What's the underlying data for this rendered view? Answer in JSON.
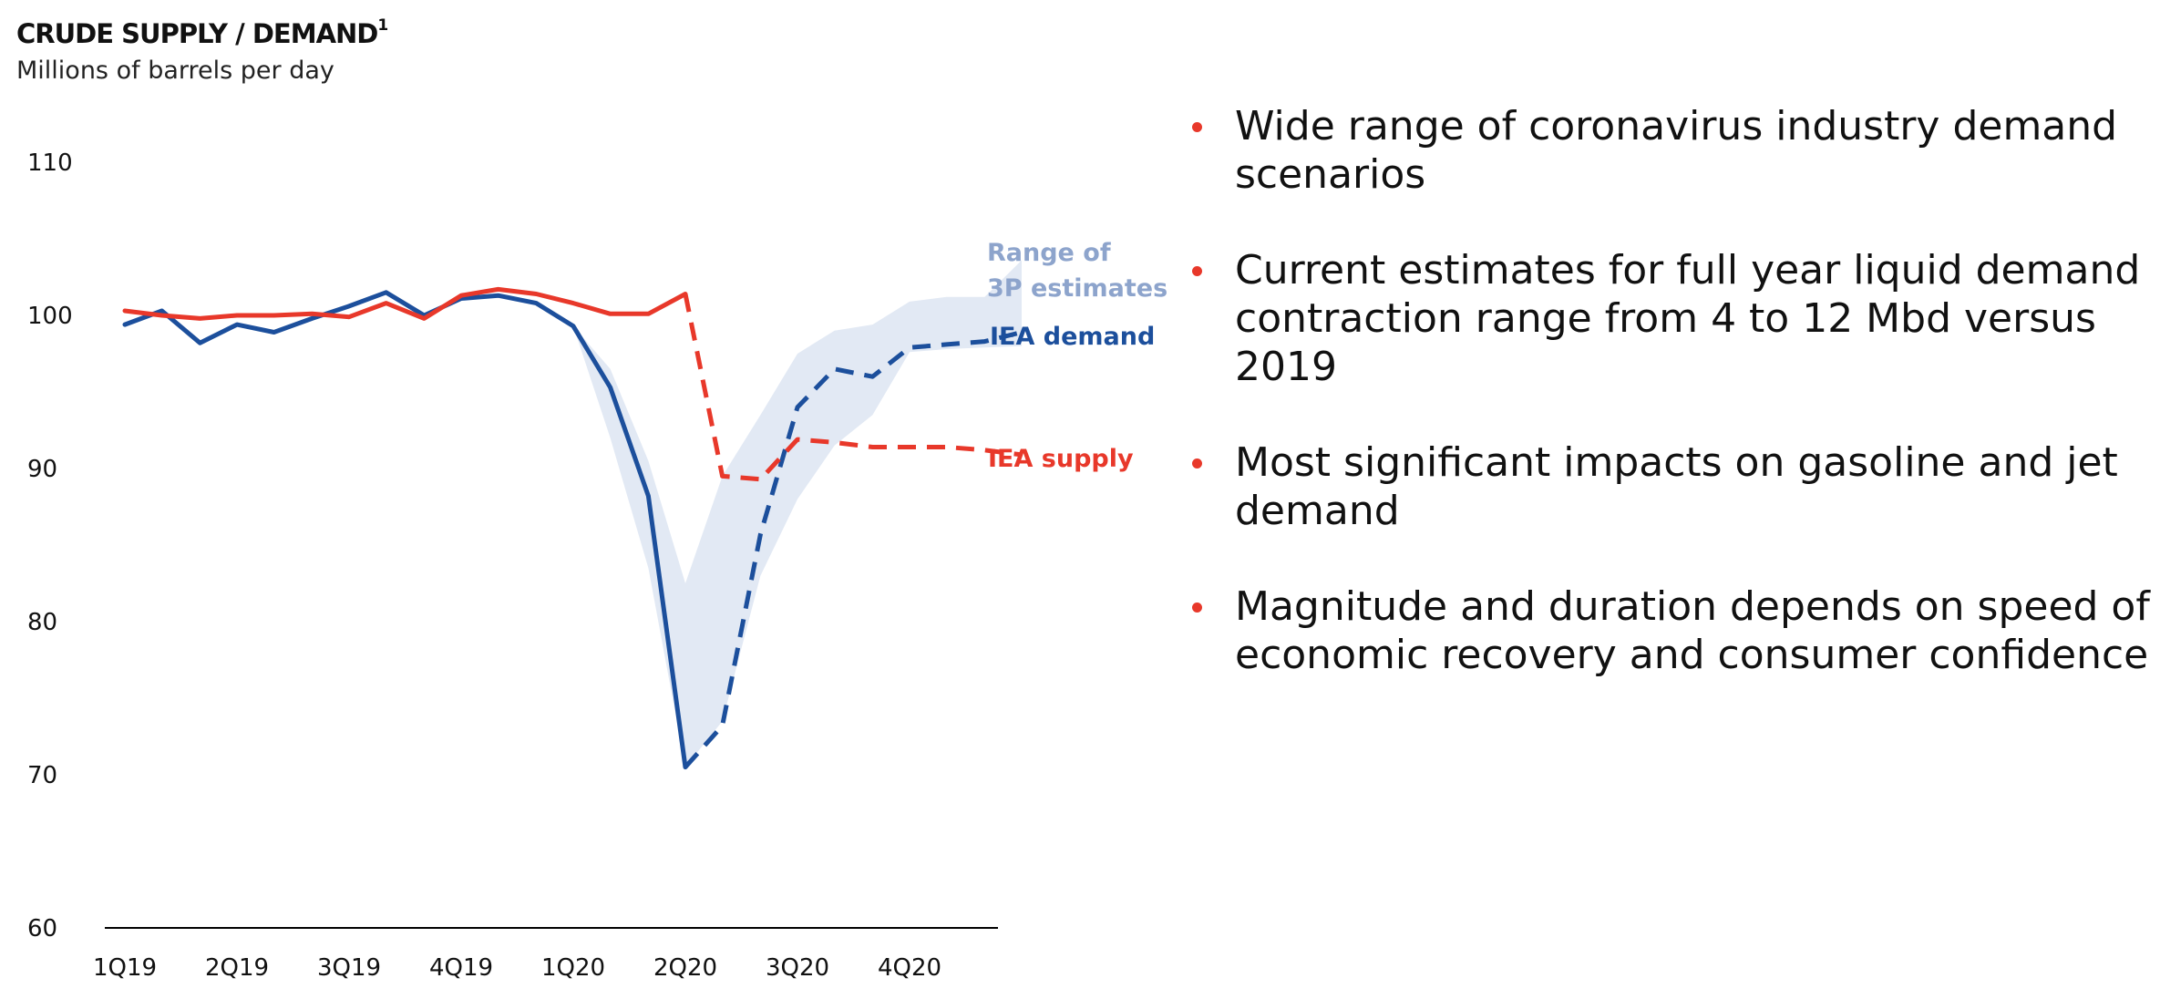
{
  "header": {
    "title": "CRUDE SUPPLY / DEMAND",
    "title_footnote": "1",
    "subtitle": "Millions of barrels per day"
  },
  "chart_data": {
    "type": "line",
    "title": "CRUDE SUPPLY / DEMAND",
    "subtitle": "Millions of barrels per day",
    "xlabel": "",
    "ylabel": "",
    "ylim": [
      60,
      110
    ],
    "yticks": [
      60,
      70,
      80,
      90,
      100,
      110
    ],
    "xticks": [
      "1Q19",
      "2Q19",
      "3Q19",
      "4Q19",
      "1Q20",
      "2Q20",
      "3Q20",
      "4Q20"
    ],
    "grid": false,
    "colors": {
      "demand": "#1c4f9c",
      "supply": "#e8382a",
      "range": "#e2e9f4",
      "range_label": "#8da4cc",
      "axis": "#000000"
    },
    "series": [
      {
        "name": "IEA demand",
        "x": [
          0,
          0.33,
          0.67,
          1,
          1.33,
          1.67,
          2,
          2.33,
          2.67,
          3,
          3.33,
          3.67,
          4,
          4.33,
          4.67,
          5,
          5.33,
          5.67,
          6,
          6.33,
          6.67,
          7,
          7.33,
          7.67,
          8
        ],
        "values": [
          99.4,
          100.3,
          98.2,
          99.4,
          98.9,
          99.8,
          100.6,
          101.5,
          100.0,
          101.1,
          101.3,
          100.8,
          99.3,
          95.3,
          88.2,
          70.5,
          73.2,
          85.7,
          94.0,
          96.5,
          96.0,
          97.9,
          98.1,
          98.3,
          98.9
        ],
        "dashed_from_index": 15
      },
      {
        "name": "IEA supply",
        "x": [
          0,
          0.33,
          0.67,
          1,
          1.33,
          1.67,
          2,
          2.33,
          2.67,
          3,
          3.33,
          3.67,
          4,
          4.33,
          4.67,
          5,
          5.33,
          5.67,
          6,
          6.33,
          6.67,
          7,
          7.33,
          7.67,
          8
        ],
        "values": [
          100.3,
          100.0,
          99.8,
          100.0,
          100.0,
          100.1,
          99.9,
          100.8,
          99.8,
          101.3,
          101.7,
          101.4,
          100.8,
          100.1,
          100.1,
          101.4,
          89.5,
          89.3,
          91.9,
          91.7,
          91.4,
          91.4,
          91.4,
          91.2,
          90.9
        ],
        "dashed_from_index": 15
      }
    ],
    "range_band": {
      "name": "Range of 3P estimates",
      "label_lines": [
        "Range of",
        "3P estimates"
      ],
      "x": [
        4,
        4.33,
        4.67,
        5,
        5.33,
        5.67,
        6,
        6.33,
        6.67,
        7,
        7.33,
        7.67,
        8
      ],
      "upper": [
        99.3,
        96.5,
        90.5,
        82.5,
        89.5,
        93.5,
        97.5,
        99.0,
        99.4,
        100.9,
        101.2,
        101.2,
        103.6
      ],
      "lower": [
        99.3,
        92.0,
        83.5,
        70.5,
        73.5,
        83.0,
        88.0,
        91.5,
        93.5,
        97.6,
        97.8,
        97.9,
        98.0
      ]
    }
  },
  "bullets": [
    "Wide range of coronavirus industry demand scenarios",
    "Current estimates for full year liquid demand contraction range from 4 to 12 Mbd versus 2019",
    "Most significant impacts on gasoline and jet demand",
    "Magnitude and duration depends on speed of economic recovery and consumer confidence"
  ]
}
